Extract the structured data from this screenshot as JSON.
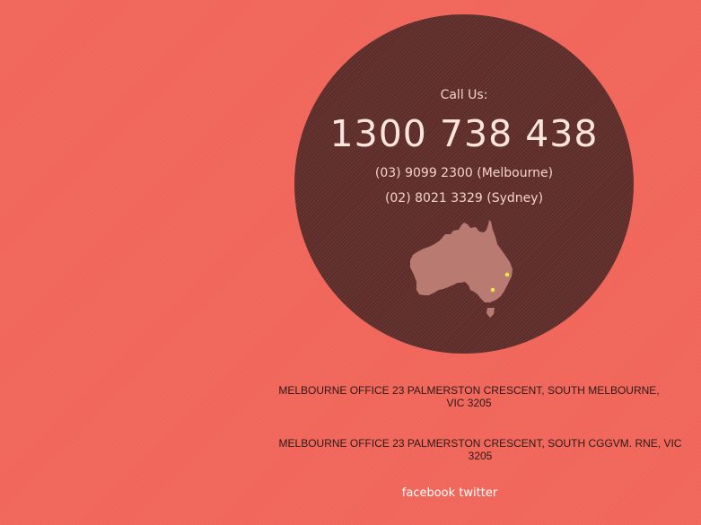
{
  "contact": {
    "call_label": "Call Us:",
    "main_phone": "1300 738 438",
    "phones": [
      "(03) 9099 2300 (Melbourne)",
      "(02) 8021 3329 (Sydney)"
    ]
  },
  "addresses": [
    "MELBOURNE OFFICE 23 PALMERSTON CRESCENT, SOUTH MELBOURNE, VIC 3205",
    "MELBOURNE OFFICE 23 PALMERSTON CRESCENT, SOUTH CGGVM. RNE, VIC 3205"
  ],
  "social": {
    "facebook": "facebook",
    "twitter": "twitter"
  },
  "colors": {
    "background": "#f1665a",
    "circle": "#5e2d2a",
    "map_fill": "#b97a72",
    "location_dot": "#e8e84a"
  },
  "icons": {
    "map": "australia-map-icon",
    "marker": "location-dot-icon"
  }
}
